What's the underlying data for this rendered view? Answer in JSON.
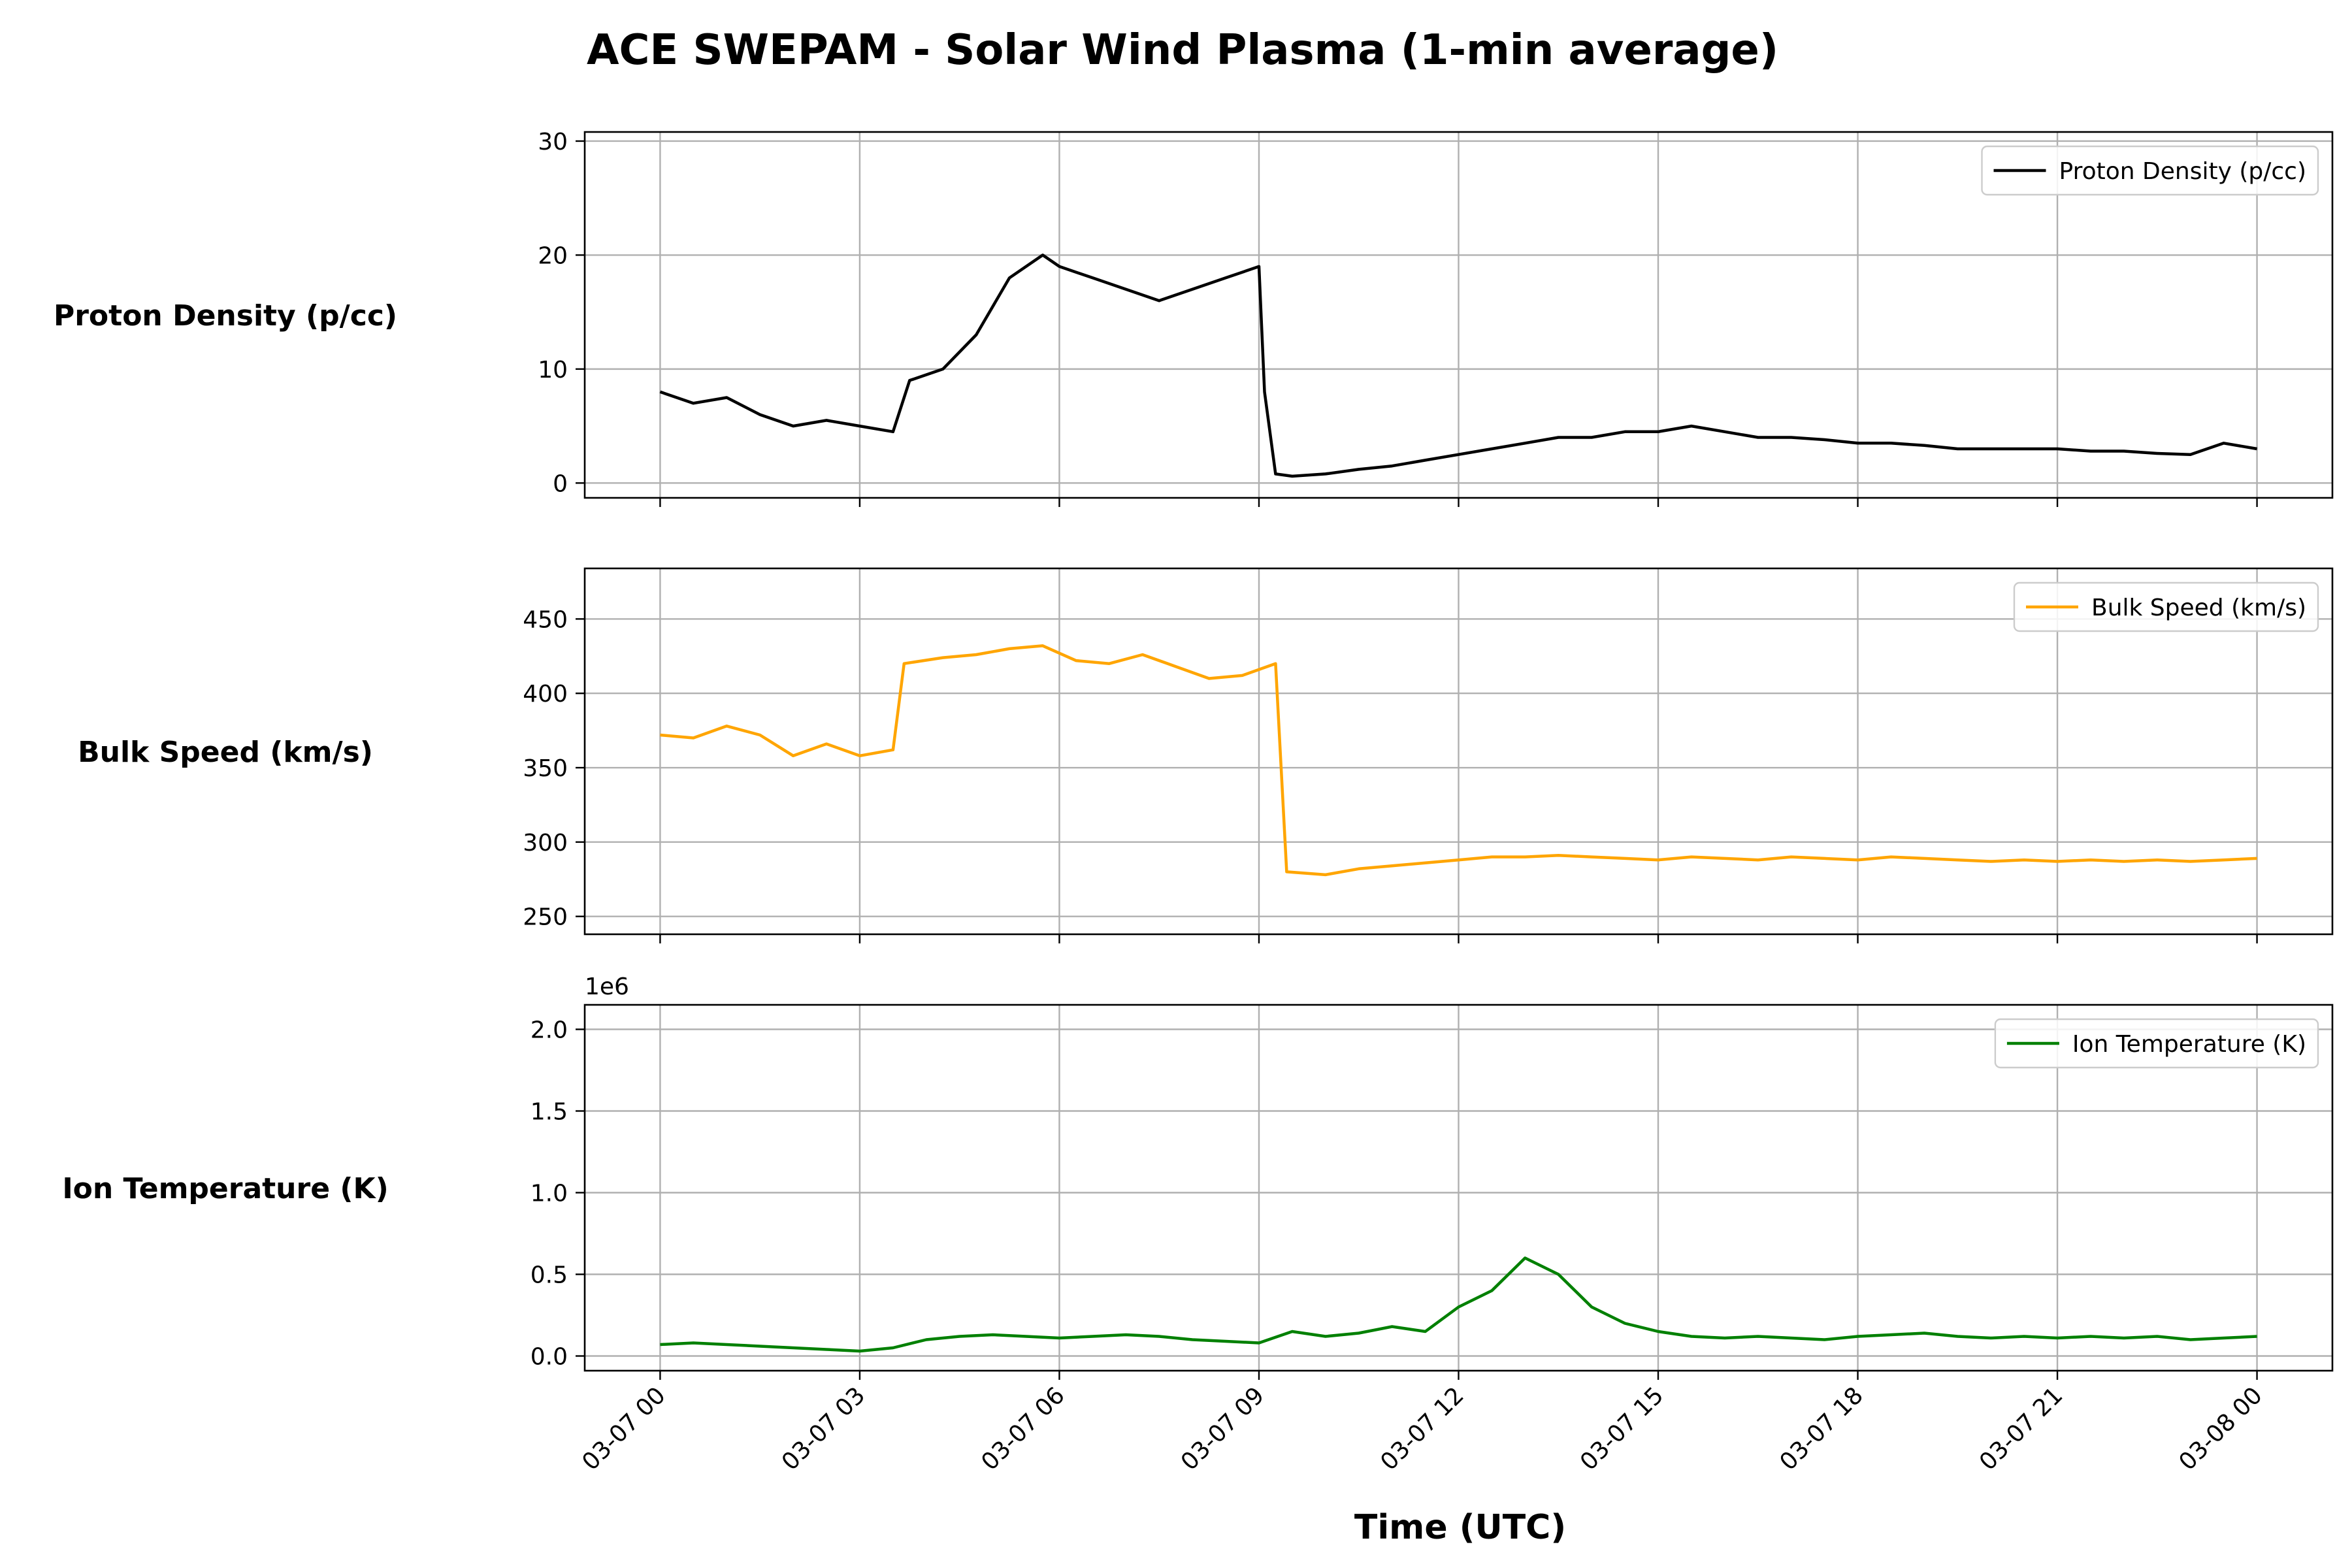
{
  "chart_data": {
    "type": "line",
    "title": "ACE SWEPAM - Solar Wind Plasma (1-min average)",
    "xlabel": "Time (UTC)",
    "x_ticks": [
      "03-07 00",
      "03-07 03",
      "03-07 06",
      "03-07 09",
      "03-07 12",
      "03-07 15",
      "03-07 18",
      "03-07 21",
      "03-08 00"
    ],
    "xlim": [
      "2025-03-06 22:52",
      "2025-03-08 01:08"
    ],
    "grid": true,
    "panels": [
      {
        "ylabel": "Proton Density (p/cc)",
        "legend": "Proton Density (p/cc)",
        "legend_placement": "top-right",
        "color": "#000000",
        "ylim": [
          -1.3,
          30.8
        ],
        "y_ticks": [
          0,
          10,
          20,
          30
        ],
        "y_tick_labels": [
          "0",
          "10",
          "20",
          "30"
        ],
        "series": {
          "name": "Proton Density (p/cc)",
          "x": [
            "03-07 00:00",
            "03-07 00:30",
            "03-07 01:00",
            "03-07 01:30",
            "03-07 02:00",
            "03-07 02:30",
            "03-07 03:00",
            "03-07 03:30",
            "03-07 03:45",
            "03-07 04:15",
            "03-07 04:45",
            "03-07 05:15",
            "03-07 05:45",
            "03-07 06:00",
            "03-07 06:30",
            "03-07 07:00",
            "03-07 07:30",
            "03-07 08:00",
            "03-07 08:30",
            "03-07 09:00",
            "03-07 09:05",
            "03-07 09:15",
            "03-07 09:30",
            "03-07 10:00",
            "03-07 10:30",
            "03-07 11:00",
            "03-07 11:30",
            "03-07 12:00",
            "03-07 12:30",
            "03-07 13:00",
            "03-07 13:30",
            "03-07 14:00",
            "03-07 14:30",
            "03-07 15:00",
            "03-07 15:30",
            "03-07 16:00",
            "03-07 16:30",
            "03-07 17:00",
            "03-07 17:30",
            "03-07 18:00",
            "03-07 18:30",
            "03-07 19:00",
            "03-07 19:30",
            "03-07 20:00",
            "03-07 20:30",
            "03-07 21:00",
            "03-07 21:30",
            "03-07 22:00",
            "03-07 22:30",
            "03-07 23:00",
            "03-07 23:30",
            "03-08 00:00"
          ],
          "values": [
            8,
            7,
            7.5,
            6,
            5,
            5.5,
            5,
            4.5,
            9,
            10,
            13,
            18,
            20,
            19,
            18,
            17,
            16,
            17,
            18,
            19,
            8,
            0.8,
            0.6,
            0.8,
            1.2,
            1.5,
            2,
            2.5,
            3,
            3.5,
            4,
            4,
            4.5,
            4.5,
            5,
            4.5,
            4,
            4,
            3.8,
            3.5,
            3.5,
            3.3,
            3,
            3,
            3,
            3,
            2.8,
            2.8,
            2.6,
            2.5,
            3.5,
            3
          ]
        }
      },
      {
        "ylabel": "Bulk Speed (km/s)",
        "legend": "Bulk Speed (km/s)",
        "legend_placement": "top-right",
        "color": "#ffa500",
        "ylim": [
          238,
          484
        ],
        "y_ticks": [
          250,
          300,
          350,
          400,
          450
        ],
        "y_tick_labels": [
          "250",
          "300",
          "350",
          "400",
          "450"
        ],
        "series": {
          "name": "Bulk Speed (km/s)",
          "x": [
            "03-07 00:00",
            "03-07 00:30",
            "03-07 01:00",
            "03-07 01:30",
            "03-07 02:00",
            "03-07 02:30",
            "03-07 03:00",
            "03-07 03:30",
            "03-07 03:40",
            "03-07 04:15",
            "03-07 04:45",
            "03-07 05:15",
            "03-07 05:45",
            "03-07 06:15",
            "03-07 06:45",
            "03-07 07:15",
            "03-07 07:45",
            "03-07 08:15",
            "03-07 08:45",
            "03-07 09:15",
            "03-07 09:25",
            "03-07 10:00",
            "03-07 10:30",
            "03-07 11:00",
            "03-07 11:30",
            "03-07 12:00",
            "03-07 12:30",
            "03-07 13:00",
            "03-07 13:30",
            "03-07 14:00",
            "03-07 14:30",
            "03-07 15:00",
            "03-07 15:30",
            "03-07 16:00",
            "03-07 16:30",
            "03-07 17:00",
            "03-07 17:30",
            "03-07 18:00",
            "03-07 18:30",
            "03-07 19:00",
            "03-07 19:30",
            "03-07 20:00",
            "03-07 20:30",
            "03-07 21:00",
            "03-07 21:30",
            "03-07 22:00",
            "03-07 22:30",
            "03-07 23:00",
            "03-07 23:30",
            "03-08 00:00"
          ],
          "values": [
            372,
            370,
            378,
            372,
            358,
            366,
            358,
            362,
            420,
            424,
            426,
            430,
            432,
            422,
            420,
            426,
            418,
            410,
            412,
            420,
            280,
            278,
            282,
            284,
            286,
            288,
            290,
            290,
            291,
            290,
            289,
            288,
            290,
            289,
            288,
            290,
            289,
            288,
            290,
            289,
            288,
            287,
            288,
            287,
            288,
            287,
            288,
            287,
            288,
            289
          ]
        }
      },
      {
        "ylabel": "Ion Temperature (K)",
        "legend": "Ion Temperature (K)",
        "legend_placement": "top-right",
        "color": "#008000",
        "offset_text": "1e6",
        "ylim": [
          -0.09,
          2.15
        ],
        "y_ticks": [
          0,
          0.5,
          1.0,
          1.5,
          2.0
        ],
        "y_tick_labels": [
          "0.0",
          "0.5",
          "1.0",
          "1.5",
          "2.0"
        ],
        "series": {
          "name": "Ion Temperature (K)",
          "x": [
            "03-07 00:00",
            "03-07 00:30",
            "03-07 01:00",
            "03-07 01:30",
            "03-07 02:00",
            "03-07 02:30",
            "03-07 03:00",
            "03-07 03:30",
            "03-07 04:00",
            "03-07 04:30",
            "03-07 05:00",
            "03-07 05:30",
            "03-07 06:00",
            "03-07 06:30",
            "03-07 07:00",
            "03-07 07:30",
            "03-07 08:00",
            "03-07 08:30",
            "03-07 09:00",
            "03-07 09:30",
            "03-07 10:00",
            "03-07 10:30",
            "03-07 11:00",
            "03-07 11:30",
            "03-07 12:00",
            "03-07 12:30",
            "03-07 13:00",
            "03-07 13:30",
            "03-07 14:00",
            "03-07 14:30",
            "03-07 15:00",
            "03-07 15:30",
            "03-07 16:00",
            "03-07 16:30",
            "03-07 17:00",
            "03-07 17:30",
            "03-07 18:00",
            "03-07 18:30",
            "03-07 19:00",
            "03-07 19:30",
            "03-07 20:00",
            "03-07 20:30",
            "03-07 21:00",
            "03-07 21:30",
            "03-07 22:00",
            "03-07 22:30",
            "03-07 23:00",
            "03-07 23:30",
            "03-08 00:00"
          ],
          "values": [
            0.07,
            0.08,
            0.07,
            0.06,
            0.05,
            0.04,
            0.03,
            0.05,
            0.1,
            0.12,
            0.13,
            0.12,
            0.11,
            0.12,
            0.13,
            0.12,
            0.1,
            0.09,
            0.08,
            0.15,
            0.12,
            0.14,
            0.18,
            0.15,
            0.3,
            0.4,
            0.6,
            0.5,
            0.3,
            0.2,
            0.15,
            0.12,
            0.11,
            0.12,
            0.11,
            0.1,
            0.12,
            0.13,
            0.14,
            0.12,
            0.11,
            0.12,
            0.11,
            0.12,
            0.11,
            0.12,
            0.1,
            0.11,
            0.12
          ]
        }
      }
    ]
  }
}
